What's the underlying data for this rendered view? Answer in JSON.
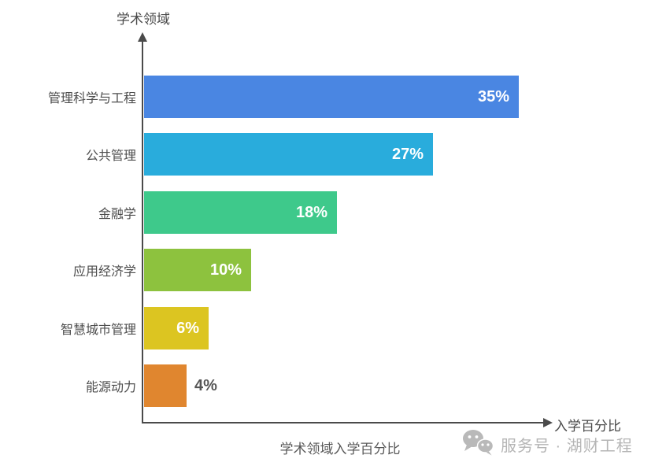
{
  "chart_data": {
    "type": "bar",
    "orientation": "horizontal",
    "title": "学术领域入学百分比",
    "xlabel": "入学百分比",
    "ylabel": "学术领域",
    "categories": [
      "管理科学与工程",
      "公共管理",
      "金融学",
      "应用经济学",
      "智慧城市管理",
      "能源动力"
    ],
    "values": [
      35,
      27,
      18,
      10,
      6,
      4
    ],
    "value_labels": [
      "35%",
      "27%",
      "18%",
      "10%",
      "6%",
      "4%"
    ],
    "colors": [
      "#4a86e2",
      "#29acdc",
      "#3ec98b",
      "#8dc23e",
      "#dcc521",
      "#e0862f"
    ],
    "xlim": [
      0,
      37.5
    ],
    "grid": false,
    "legend": "none",
    "axis_color": "#4a4a4a"
  },
  "watermark": {
    "icon": "wechat-icon",
    "text": "服务号 · 湖财工程",
    "color": "#b5b5b5"
  }
}
